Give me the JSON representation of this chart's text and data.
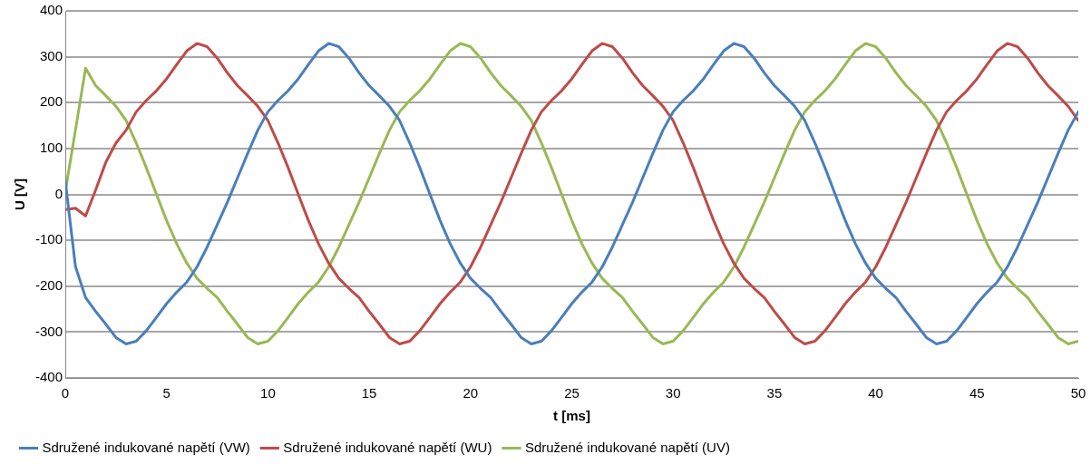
{
  "chart_data": {
    "type": "line",
    "xlabel": "t [ms]",
    "ylabel": "U [V]",
    "x": [
      0,
      0.5,
      1,
      1.5,
      2,
      2.5,
      3,
      3.5,
      4,
      4.5,
      5,
      5.5,
      6,
      6.5,
      7,
      7.5,
      8,
      8.5,
      9,
      9.5,
      10,
      10.5,
      11,
      11.5,
      12,
      12.5,
      13,
      13.5,
      14,
      14.5,
      15,
      15.5,
      16,
      16.5,
      17,
      17.5,
      18,
      18.5,
      19,
      19.5,
      20,
      20.5,
      21,
      21.5,
      22,
      22.5,
      23,
      23.5,
      24,
      24.5,
      25,
      25.5,
      26,
      26.5,
      27,
      27.5,
      28,
      28.5,
      29,
      29.5,
      30,
      30.5,
      31,
      31.5,
      32,
      32.5,
      33,
      33.5,
      34,
      34.5,
      35,
      35.5,
      36,
      36.5,
      37,
      37.5,
      38,
      38.5,
      39,
      39.5,
      40,
      40.5,
      41,
      41.5,
      42,
      42.5,
      43,
      43.5,
      44,
      44.5,
      45,
      45.5,
      46,
      46.5,
      47,
      47.5,
      48,
      48.5,
      49,
      49.5,
      50
    ],
    "xlim": [
      0,
      50
    ],
    "xticks": [
      0,
      5,
      10,
      15,
      20,
      25,
      30,
      35,
      40,
      45,
      50
    ],
    "ylim": [
      -400,
      400
    ],
    "yticks": [
      -400,
      -300,
      -200,
      -100,
      0,
      100,
      200,
      300,
      400
    ],
    "grid": "y",
    "legend": "bottom",
    "marker": "none",
    "line_style": "solid",
    "series": [
      {
        "name": "Sdružené indukované napětí (VW)",
        "color": "#4a7ebb",
        "values": [
          29,
          -157,
          -225,
          -255,
          -283,
          -312,
          -326,
          -320,
          -297,
          -268,
          -238,
          -213,
          -191,
          -158,
          -115,
          -66,
          -17,
          36,
          89,
          140,
          180,
          205,
          226,
          252,
          283,
          313,
          329,
          322,
          297,
          265,
          237,
          215,
          192,
          161,
          112,
          58,
          0,
          -57,
          -108,
          -150,
          -183,
          -205,
          -225,
          -255,
          -283,
          -312,
          -326,
          -320,
          -297,
          -268,
          -238,
          -213,
          -191,
          -158,
          -115,
          -66,
          -17,
          36,
          89,
          140,
          180,
          205,
          226,
          252,
          283,
          313,
          329,
          322,
          297,
          265,
          237,
          215,
          192,
          161,
          112,
          58,
          0,
          -57,
          -108,
          -150,
          -183,
          -205,
          -225,
          -255,
          -283,
          -312,
          -326,
          -320,
          -297,
          -268,
          -238,
          -213,
          -191,
          -158,
          -115,
          -66,
          -17,
          36,
          89,
          140,
          180
        ]
      },
      {
        "name": "Sdružené indukované napětí (WU)",
        "color": "#be4b48",
        "values": [
          -33,
          -30,
          -47,
          10,
          70,
          112,
          140,
          180,
          205,
          226,
          252,
          283,
          313,
          329,
          322,
          297,
          265,
          237,
          215,
          192,
          161,
          112,
          58,
          0,
          -57,
          -108,
          -150,
          -183,
          -205,
          -225,
          -255,
          -283,
          -312,
          -326,
          -320,
          -297,
          -268,
          -238,
          -213,
          -191,
          -158,
          -115,
          -66,
          -17,
          36,
          89,
          140,
          180,
          205,
          226,
          252,
          283,
          313,
          329,
          322,
          297,
          265,
          237,
          215,
          192,
          161,
          112,
          58,
          0,
          -57,
          -108,
          -150,
          -183,
          -205,
          -225,
          -255,
          -283,
          -312,
          -326,
          -320,
          -297,
          -268,
          -238,
          -213,
          -191,
          -158,
          -115,
          -66,
          -17,
          36,
          89,
          140,
          180,
          205,
          226,
          252,
          283,
          313,
          329,
          322,
          297,
          265,
          237,
          215,
          192,
          161
        ]
      },
      {
        "name": "Sdružené indukované napětí (UV)",
        "color": "#98b954",
        "values": [
          6,
          140,
          275,
          237,
          215,
          192,
          161,
          112,
          58,
          0,
          -57,
          -108,
          -150,
          -183,
          -205,
          -225,
          -255,
          -283,
          -312,
          -326,
          -320,
          -297,
          -268,
          -238,
          -213,
          -191,
          -158,
          -115,
          -66,
          -17,
          36,
          89,
          140,
          180,
          205,
          226,
          252,
          283,
          313,
          329,
          322,
          297,
          265,
          237,
          215,
          192,
          161,
          112,
          58,
          0,
          -57,
          -108,
          -150,
          -183,
          -205,
          -225,
          -255,
          -283,
          -312,
          -326,
          -320,
          -297,
          -268,
          -238,
          -213,
          -191,
          -158,
          -115,
          -66,
          -17,
          36,
          89,
          140,
          180,
          205,
          226,
          252,
          283,
          313,
          329,
          322,
          297,
          265,
          237,
          215,
          192,
          161,
          112,
          58,
          0,
          -57,
          -108,
          -150,
          -183,
          -205,
          -225,
          -255,
          -283,
          -312,
          -326,
          -320
        ]
      }
    ]
  }
}
